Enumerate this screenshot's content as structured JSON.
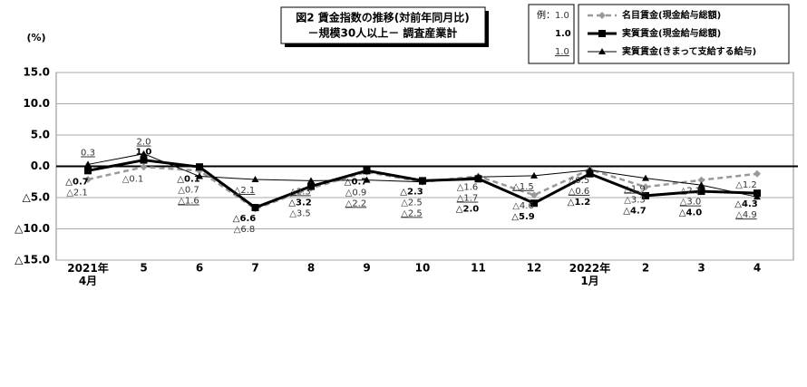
{
  "chart_data": {
    "type": "line",
    "title": "図2  賃金指数の推移(対前年同月比)",
    "subtitle": "－規模30人以上－   調査産業計",
    "y_label": "(%)",
    "legend_example_label": "例：",
    "legend_sample": "1.0",
    "categories": [
      "2021年\n4月",
      "5",
      "6",
      "7",
      "8",
      "9",
      "10",
      "11",
      "12",
      "2022年\n1月",
      "2",
      "3",
      "4"
    ],
    "ylim": [
      -15,
      15
    ],
    "yticks": [
      {
        "value": 15,
        "label": "15.0"
      },
      {
        "value": 10,
        "label": "10.0"
      },
      {
        "value": 5,
        "label": "5.0"
      },
      {
        "value": 0,
        "label": "0.0"
      },
      {
        "value": -5,
        "label": "△5.0"
      },
      {
        "value": -10,
        "label": "△10.0"
      },
      {
        "value": -15,
        "label": "△15.0"
      }
    ],
    "grid": true,
    "series": [
      {
        "name": "名目賃金(現金給与総額)",
        "color": "#999999",
        "style": "plain",
        "marker": "diamond",
        "values": [
          -2.1,
          -0.1,
          -0.7,
          -6.8,
          -3.5,
          -0.9,
          -2.5,
          -1.6,
          -4.6,
          -0.5,
          -3.3,
          -2.2,
          -1.2
        ],
        "value_labels": [
          "△2.1",
          "△0.1",
          "△0.7",
          "△6.8",
          "△3.5",
          "△0.9",
          "△2.5",
          "△1.6",
          "△4.6",
          "△0.5",
          "△3.3",
          "△2.2",
          "△1.2"
        ]
      },
      {
        "name": "実質賃金(現金給与総額)",
        "color": "#000000",
        "style": "bold",
        "marker": "square",
        "values": [
          -0.7,
          1.0,
          -0.1,
          -6.6,
          -3.2,
          -0.7,
          -2.3,
          -2.0,
          -5.9,
          -1.2,
          -4.7,
          -4.0,
          -4.3
        ],
        "value_labels": [
          "△0.7",
          "1.0",
          "△0.1",
          "△6.6",
          "△3.2",
          "△0.7",
          "△2.3",
          "△2.0",
          "△5.9",
          "△1.2",
          "△4.7",
          "△4.0",
          "△4.3"
        ]
      },
      {
        "name": "実質賃金(きまって支給する給与)",
        "color": "#000000",
        "style": "under",
        "marker": "triangle",
        "values": [
          0.3,
          2.0,
          -1.6,
          -2.1,
          -2.3,
          -2.2,
          -2.5,
          -1.7,
          -1.5,
          -0.6,
          -1.9,
          -3.0,
          -4.9
        ],
        "value_labels": [
          "0.3",
          "2.0",
          "△1.6",
          "△2.1",
          "△2.3",
          "△2.2",
          "△2.5",
          "△1.7",
          "△1.5",
          "△0.6",
          "△1.9",
          "△3.0",
          "△4.9"
        ]
      }
    ]
  }
}
